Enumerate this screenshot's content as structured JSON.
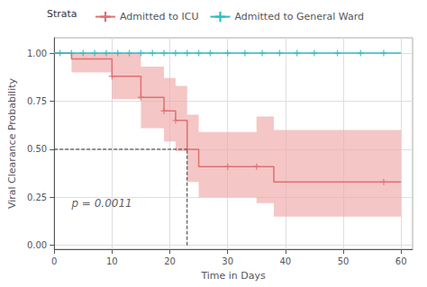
{
  "chart_data": {
    "type": "line",
    "title": "",
    "xlabel": "Time in Days",
    "ylabel": "Viral Clearance Probability",
    "legend_title": "Strata",
    "xlim": [
      0,
      62
    ],
    "ylim": [
      -0.02,
      1.08
    ],
    "xticks": [
      0,
      10,
      20,
      30,
      40,
      50,
      60
    ],
    "yticks": [
      {
        "value": 0.0,
        "label": "0.00"
      },
      0.25,
      {
        "value": 0.5,
        "label": "0.50"
      },
      0.75,
      {
        "value": 1.0,
        "label": "1.00"
      }
    ],
    "grid": true,
    "series": [
      {
        "name": "Admitted to ICU",
        "type": "step",
        "color": "#e07070",
        "x": [
          0,
          3,
          5,
          10,
          12,
          15,
          17,
          19,
          21,
          23,
          25,
          27,
          28,
          30,
          35,
          38,
          40,
          57,
          60
        ],
        "values": [
          1.0,
          0.97,
          0.97,
          0.88,
          0.88,
          0.77,
          0.77,
          0.7,
          0.65,
          0.5,
          0.41,
          0.41,
          0.41,
          0.41,
          0.41,
          0.33,
          0.33,
          0.33,
          0.33
        ],
        "ci_upper": [
          1.0,
          1.0,
          1.0,
          1.0,
          1.0,
          0.93,
          0.93,
          0.87,
          0.83,
          0.68,
          0.59,
          0.59,
          0.59,
          0.59,
          0.67,
          0.6,
          0.6,
          0.6,
          0.62
        ],
        "ci_lower": [
          1.0,
          0.9,
          0.9,
          0.76,
          0.76,
          0.61,
          0.61,
          0.54,
          0.49,
          0.33,
          0.25,
          0.25,
          0.25,
          0.25,
          0.22,
          0.15,
          0.15,
          0.15,
          0.17
        ],
        "ci_color": "#f0a8a8",
        "marker": "plus",
        "censor_x": [
          10,
          15,
          19,
          21,
          30,
          35,
          57
        ],
        "censor_values": [
          0.88,
          0.77,
          0.7,
          0.65,
          0.41,
          0.41,
          0.33
        ]
      },
      {
        "name": "Admitted to General Ward",
        "type": "step",
        "color": "#30bcc4",
        "x": [
          0,
          60
        ],
        "values": [
          1.0,
          1.0
        ],
        "marker": "plus",
        "censor_x": [
          1,
          3,
          5,
          7,
          9,
          11,
          13,
          15,
          17,
          19,
          21,
          23,
          25,
          27,
          30,
          33,
          36,
          39,
          42,
          45,
          49,
          53,
          57
        ],
        "censor_values": [
          1.0,
          1.0,
          1.0,
          1.0,
          1.0,
          1.0,
          1.0,
          1.0,
          1.0,
          1.0,
          1.0,
          1.0,
          1.0,
          1.0,
          1.0,
          1.0,
          1.0,
          1.0,
          1.0,
          1.0,
          1.0,
          1.0,
          1.0
        ]
      }
    ],
    "reference_lines": [
      {
        "x": [
          0,
          23
        ],
        "values": [
          0.5,
          0.5
        ],
        "line_style": "dashed",
        "color": "#333333"
      },
      {
        "x": [
          23,
          23
        ],
        "values": [
          0,
          0.5
        ],
        "line_style": "dashed",
        "color": "#333333"
      }
    ],
    "annotations": [
      {
        "text": "p = 0.0011",
        "x": 3,
        "y": 0.19
      }
    ]
  }
}
